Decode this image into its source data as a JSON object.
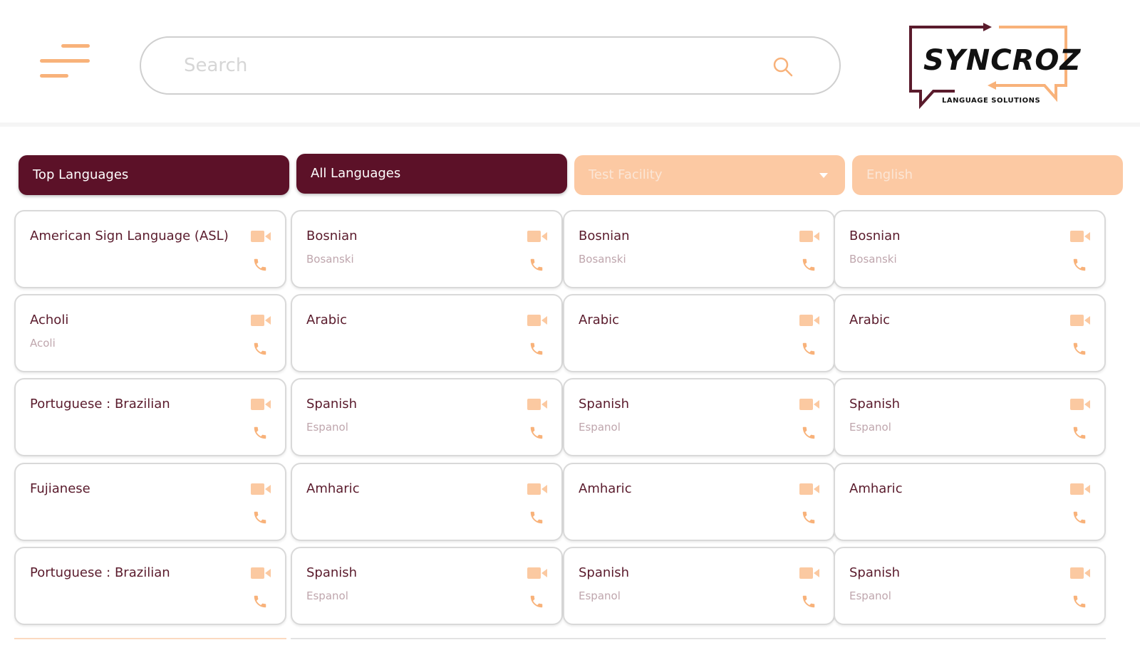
{
  "header": {
    "search_placeholder": "Search",
    "logo_text": "SYNCROZ",
    "logo_subtext": "LANGUAGE SOLUTIONS"
  },
  "colors": {
    "maroon": "#5c1128",
    "peach": "#fcc9a3",
    "accent": "#f8b27a"
  },
  "tabs": [
    {
      "label": "Top Languages"
    },
    {
      "label": "All Languages"
    },
    {
      "label": "Test Facility"
    },
    {
      "label": "English"
    }
  ],
  "columns": [
    {
      "cards": [
        {
          "name": "American Sign Language (ASL)",
          "native": ""
        },
        {
          "name": "Acholi",
          "native": "Acoli"
        },
        {
          "name": "Portuguese : Brazilian",
          "native": ""
        },
        {
          "name": "Fujianese",
          "native": ""
        },
        {
          "name": "Portuguese : Brazilian",
          "native": ""
        }
      ]
    },
    {
      "cards": [
        {
          "name": "Bosnian",
          "native": "Bosanski"
        },
        {
          "name": "Arabic",
          "native": ""
        },
        {
          "name": "Spanish",
          "native": "Espanol"
        },
        {
          "name": "Amharic",
          "native": ""
        },
        {
          "name": "Spanish",
          "native": "Espanol"
        }
      ]
    },
    {
      "cards": [
        {
          "name": "Bosnian",
          "native": "Bosanski"
        },
        {
          "name": "Arabic",
          "native": ""
        },
        {
          "name": "Spanish",
          "native": "Espanol"
        },
        {
          "name": "Amharic",
          "native": ""
        },
        {
          "name": "Spanish",
          "native": "Espanol"
        }
      ]
    },
    {
      "cards": [
        {
          "name": "Bosnian",
          "native": "Bosanski"
        },
        {
          "name": "Arabic",
          "native": ""
        },
        {
          "name": "Spanish",
          "native": "Espanol"
        },
        {
          "name": "Amharic",
          "native": ""
        },
        {
          "name": "Spanish",
          "native": "Espanol"
        }
      ]
    }
  ],
  "icons": {
    "menu": "hamburger-menu-icon",
    "search": "search-icon",
    "video": "video-camera-icon",
    "phone": "phone-icon"
  }
}
